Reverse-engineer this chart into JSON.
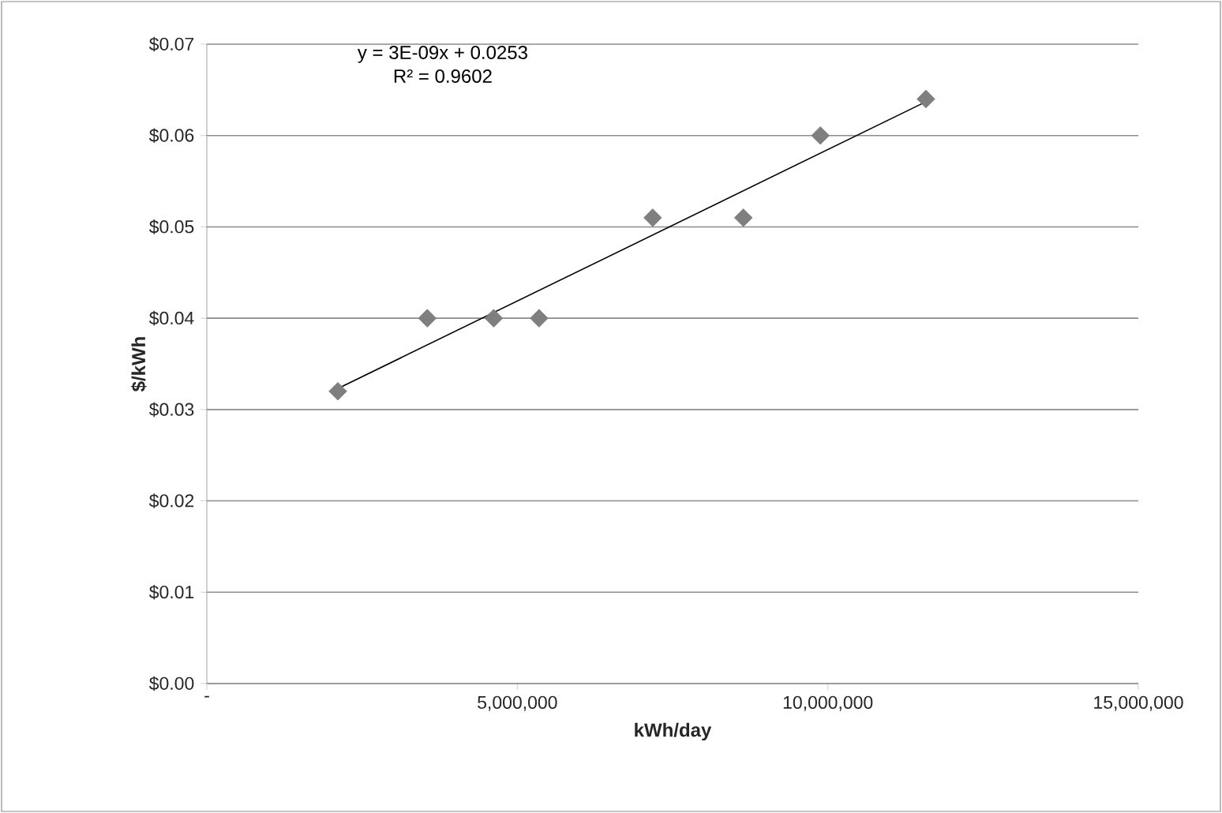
{
  "chart_data": {
    "type": "scatter",
    "xlabel": "kWh/day",
    "ylabel": "$/kWh",
    "annotations": [
      "y = 3E-09x + 0.0253",
      "R² = 0.9602"
    ],
    "series": [
      {
        "color": "#7f7f7f",
        "marker": "diamond",
        "x": [
          2110000,
          3550000,
          4620000,
          5350000,
          7180000,
          8640000,
          9880000,
          11580000
        ],
        "values": [
          0.032,
          0.04,
          0.04,
          0.04,
          0.051,
          0.051,
          0.06,
          0.064
        ]
      },
      {
        "type": "line",
        "color": "#000000",
        "marker": "none",
        "line_style": "solid",
        "x": [
          2110000,
          11580000
        ],
        "values": [
          0.0323,
          0.0637
        ]
      }
    ],
    "xlim": [
      0,
      15000000
    ],
    "ylim": [
      0,
      0.07
    ],
    "xticks": [
      {
        "value": 0,
        "label": "-"
      },
      {
        "value": 5000000,
        "label": "5,000,000"
      },
      {
        "value": 10000000,
        "label": "10,000,000"
      },
      {
        "value": 15000000,
        "label": "15,000,000"
      }
    ],
    "yticks": [
      {
        "value": 0,
        "label": "$0.00"
      },
      {
        "value": 0.01,
        "label": "$0.01"
      },
      {
        "value": 0.02,
        "label": "$0.02"
      },
      {
        "value": 0.03,
        "label": "$0.03"
      },
      {
        "value": 0.04,
        "label": "$0.04"
      },
      {
        "value": 0.05,
        "label": "$0.05"
      },
      {
        "value": 0.06,
        "label": "$0.06"
      },
      {
        "value": 0.07,
        "label": "$0.07"
      }
    ],
    "grid": "y"
  }
}
